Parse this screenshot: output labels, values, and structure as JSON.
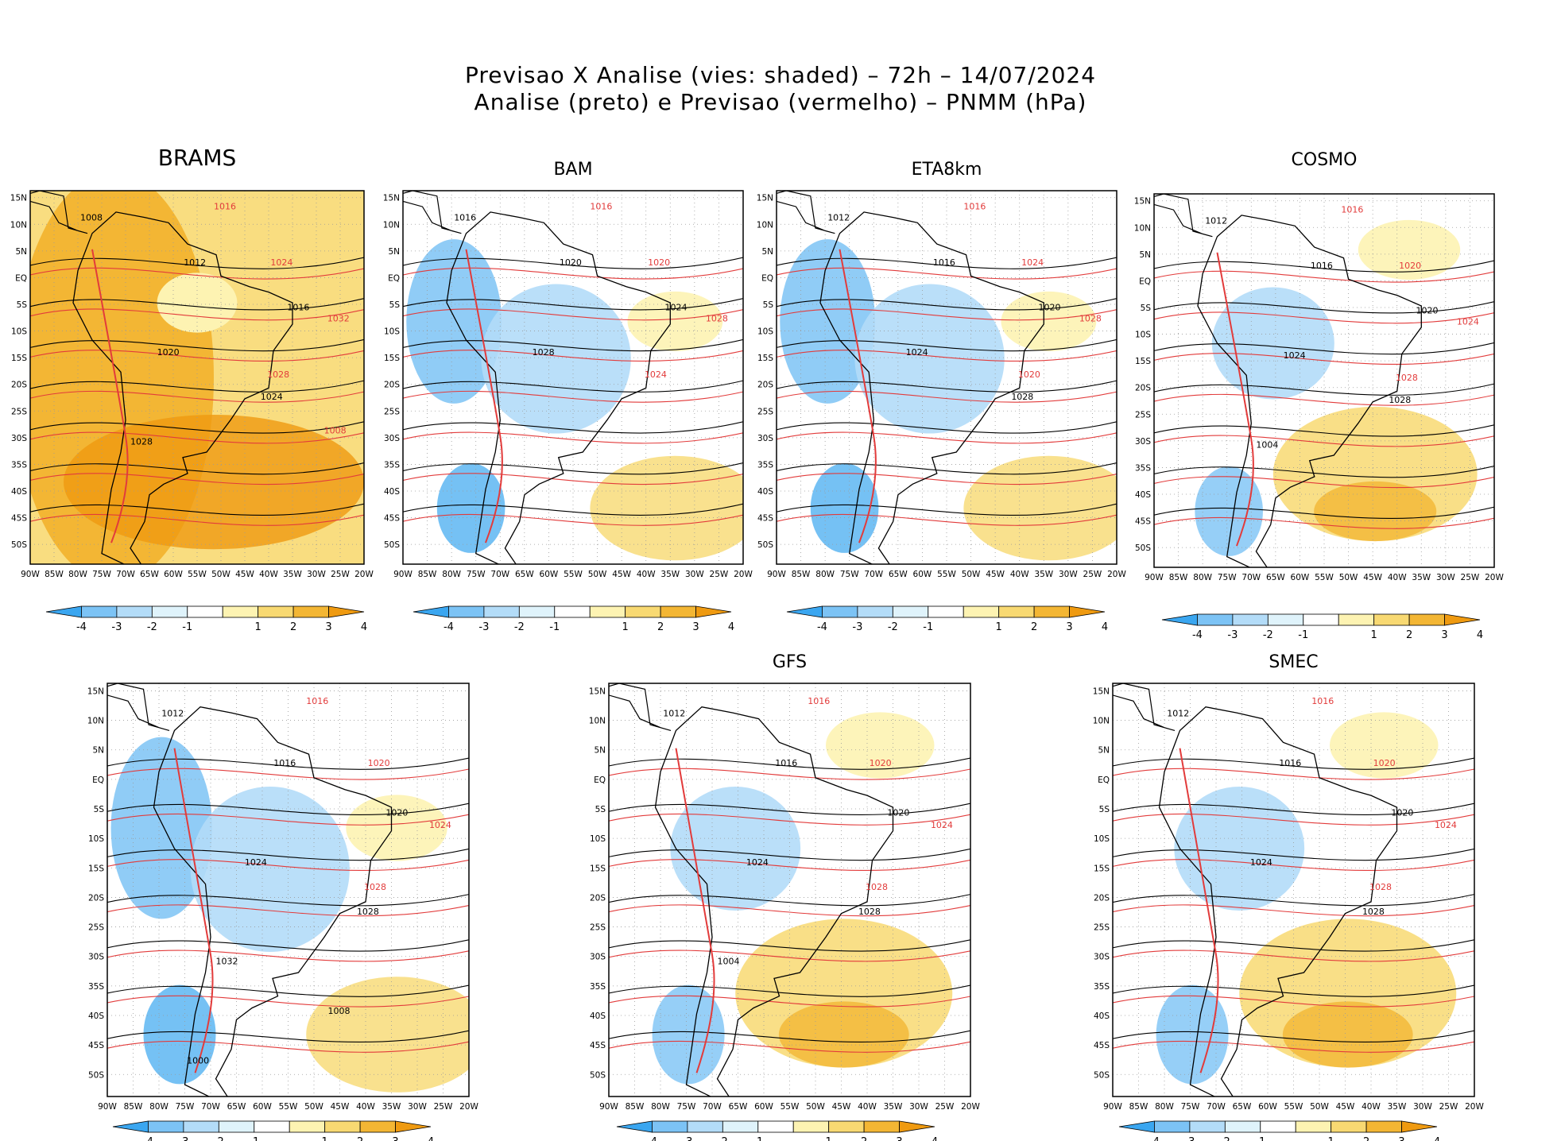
{
  "header": {
    "line1": "Previsao X Analise (vies: shaded) – 72h – 14/07/2024",
    "line2": "Analise (preto) e Previsao (vermelho) – PNMM (hPa)"
  },
  "axes": {
    "lat_labels": [
      "15N",
      "10N",
      "5N",
      "EQ",
      "5S",
      "10S",
      "15S",
      "20S",
      "25S",
      "30S",
      "35S",
      "40S",
      "45S",
      "50S"
    ],
    "lon_labels": [
      "90W",
      "85W",
      "80W",
      "75W",
      "70W",
      "65W",
      "60W",
      "55W",
      "50W",
      "45W",
      "40W",
      "35W",
      "30W",
      "25W",
      "20W"
    ]
  },
  "colorbar": {
    "labels": [
      "-4",
      "-3",
      "-2",
      "-1",
      "1",
      "2",
      "3",
      "4"
    ],
    "colors": [
      "#3aa6f0",
      "#7cc3f5",
      "#b3dcf8",
      "#dff3fb",
      "#ffffff",
      "#fdf3b2",
      "#f8d972",
      "#f3b634",
      "#ef9a10"
    ]
  },
  "colors": {
    "analysis_isobar": "#000000",
    "forecast_isobar": "#e23b3b",
    "grid": "#9a9a9a"
  },
  "panels": [
    {
      "title": "BRAMS",
      "bias": "positive",
      "labels_black": [
        "1008",
        "1012",
        "1016",
        "1020",
        "1024",
        "1028"
      ],
      "labels_red": [
        "1016",
        "1024",
        "1032",
        "1028",
        "1008"
      ]
    },
    {
      "title": "BAM",
      "bias": "negative",
      "labels_black": [
        "1016",
        "1020",
        "1024",
        "1028"
      ],
      "labels_red": [
        "1016",
        "1020",
        "1028",
        "1024"
      ]
    },
    {
      "title": "ETA8km",
      "bias": "negative",
      "labels_black": [
        "1012",
        "1016",
        "1020",
        "1024",
        "1028"
      ],
      "labels_red": [
        "1016",
        "1024",
        "1028",
        "1020"
      ]
    },
    {
      "title": "COSMO",
      "bias": "mixed",
      "labels_black": [
        "1012",
        "1016",
        "1020",
        "1024",
        "1028",
        "1004"
      ],
      "labels_red": [
        "1016",
        "1020",
        "1024",
        "1028"
      ]
    },
    {
      "title": "",
      "bias": "negative",
      "labels_black": [
        "1012",
        "1016",
        "1020",
        "1024",
        "1028",
        "1032",
        "1008",
        "1000"
      ],
      "labels_red": [
        "1016",
        "1020",
        "1024",
        "1028"
      ]
    },
    {
      "title": "GFS",
      "bias": "mixed",
      "labels_black": [
        "1012",
        "1016",
        "1020",
        "1024",
        "1028",
        "1004"
      ],
      "labels_red": [
        "1016",
        "1020",
        "1024",
        "1028"
      ]
    },
    {
      "title": "SMEC",
      "bias": "mixed",
      "labels_black": [
        "1012",
        "1016",
        "1020",
        "1024",
        "1028"
      ],
      "labels_red": [
        "1016",
        "1020",
        "1024",
        "1028"
      ]
    }
  ]
}
